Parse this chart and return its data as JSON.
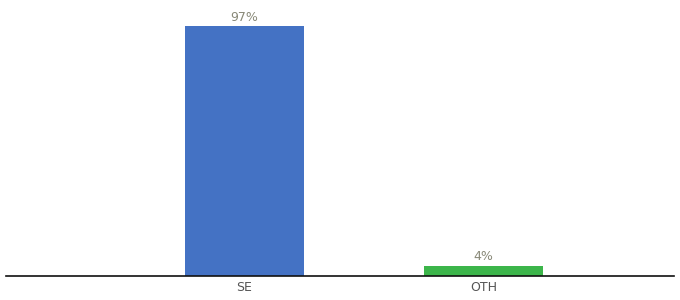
{
  "categories": [
    "SE",
    "OTH"
  ],
  "values": [
    97,
    4
  ],
  "bar_colors": [
    "#4472c4",
    "#3cb54a"
  ],
  "label_texts": [
    "97%",
    "4%"
  ],
  "background_color": "#ffffff",
  "ylim": [
    0,
    105
  ],
  "bar_width": 0.5,
  "figsize": [
    6.8,
    3.0
  ],
  "dpi": 100,
  "label_fontsize": 9,
  "label_color": "#888877",
  "tick_fontsize": 9,
  "tick_color": "#555555"
}
